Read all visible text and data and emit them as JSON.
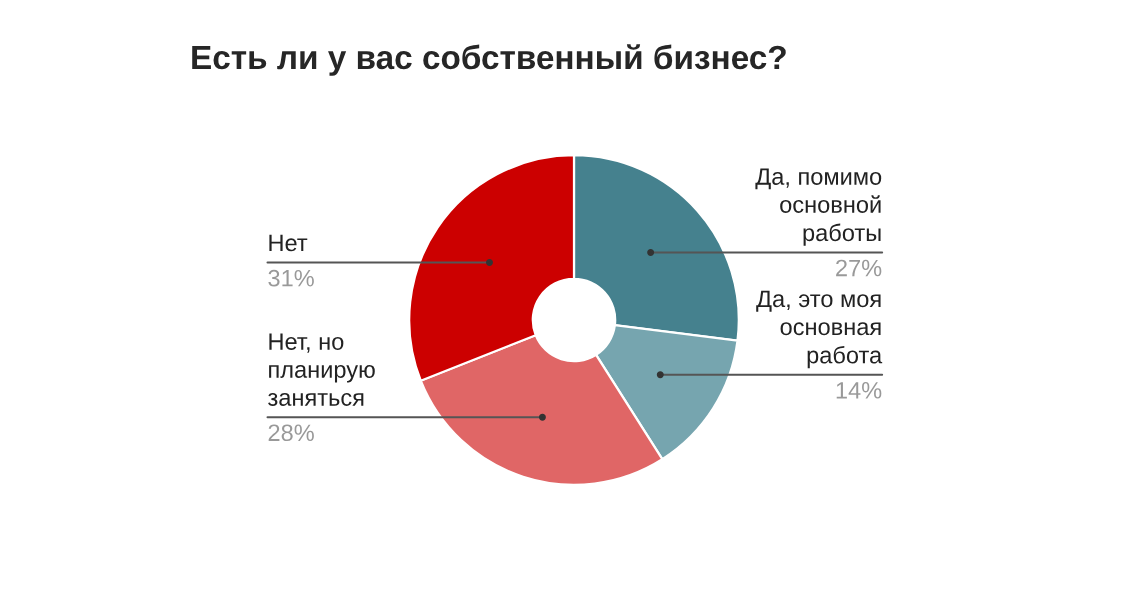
{
  "chart_data": {
    "type": "donut",
    "title": "Есть ли у вас собственный бизнес?",
    "categories": [
      "Да, помимо\nосновной\nработы",
      "Да, это моя\nосновная\nработа",
      "Нет, но\nпланирую\nзаняться",
      "Нет"
    ],
    "values": [
      27,
      14,
      28,
      31
    ],
    "value_labels": [
      "27%",
      "14%",
      "28%",
      "31%"
    ],
    "colors": [
      "#45818e",
      "#76a5af",
      "#e06666",
      "#cc0000"
    ],
    "legend": false
  }
}
